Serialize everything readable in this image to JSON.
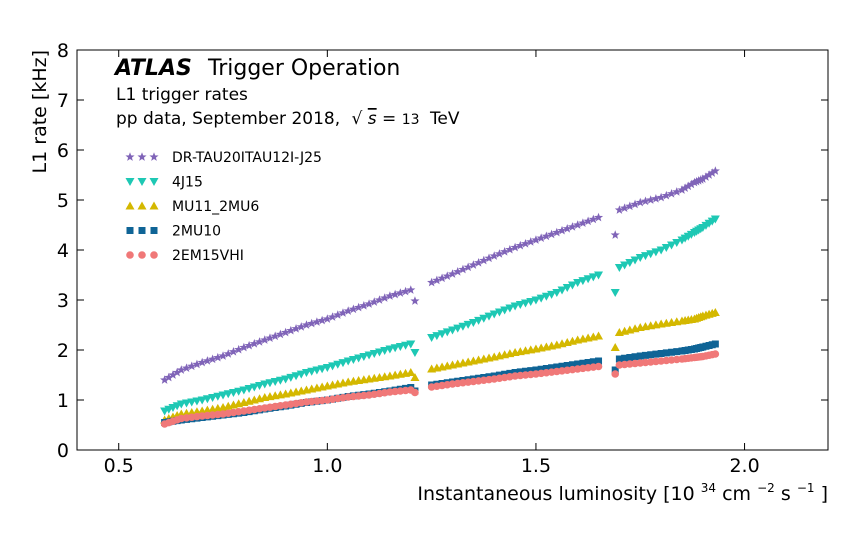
{
  "chart_data": {
    "type": "scatter",
    "title_bold": "ATLAS",
    "title_rest": "Trigger Operation",
    "subtitle_1": "L1 trigger rates",
    "subtitle_2_prefix": "pp data, September 2018,",
    "sqrt_symbol": "√",
    "sqrt_var": "s",
    "equals": "=",
    "energy_value": "13",
    "energy_unit": "TeV",
    "xlabel_prefix": "Instantaneous luminosity [10",
    "xlabel_exp1": "34",
    "xlabel_mid": "cm",
    "xlabel_exp2": "−2",
    "xlabel_s": "s",
    "xlabel_exp3": "−1",
    "xlabel_end": "]",
    "ylabel": "L1 rate [kHz]",
    "xlim": [
      0.4,
      2.2
    ],
    "ylim": [
      0,
      8
    ],
    "x_ticks": [
      0.5,
      1.0,
      1.5,
      2.0
    ],
    "x_tick_labels": [
      "0.5",
      "1.0",
      "1.5",
      "2.0"
    ],
    "y_ticks": [
      0,
      1,
      2,
      3,
      4,
      5,
      6,
      7,
      8
    ],
    "y_tick_labels": [
      "0",
      "1",
      "2",
      "3",
      "4",
      "5",
      "6",
      "7",
      "8"
    ],
    "grid": false,
    "legend_position": "upper-left",
    "series": [
      {
        "name": "DR-TAU20ITAU12I-J25",
        "marker": "star",
        "color": "#8064b8",
        "points": [
          [
            0.61,
            1.4
          ],
          [
            0.65,
            1.6
          ],
          [
            0.7,
            1.75
          ],
          [
            0.75,
            1.88
          ],
          [
            0.8,
            2.05
          ],
          [
            0.85,
            2.2
          ],
          [
            0.9,
            2.35
          ],
          [
            0.95,
            2.5
          ],
          [
            1.0,
            2.62
          ],
          [
            1.05,
            2.78
          ],
          [
            1.1,
            2.92
          ],
          [
            1.15,
            3.08
          ],
          [
            1.2,
            3.2
          ],
          [
            1.21,
            2.98
          ],
          [
            1.25,
            3.35
          ],
          [
            1.3,
            3.52
          ],
          [
            1.35,
            3.7
          ],
          [
            1.4,
            3.88
          ],
          [
            1.45,
            4.05
          ],
          [
            1.5,
            4.2
          ],
          [
            1.55,
            4.35
          ],
          [
            1.6,
            4.5
          ],
          [
            1.65,
            4.65
          ],
          [
            1.69,
            4.3
          ],
          [
            1.7,
            4.8
          ],
          [
            1.75,
            4.95
          ],
          [
            1.8,
            5.05
          ],
          [
            1.85,
            5.2
          ],
          [
            1.88,
            5.35
          ],
          [
            1.9,
            5.42
          ],
          [
            1.93,
            5.58
          ]
        ]
      },
      {
        "name": "4J15",
        "marker": "triangle-down",
        "color": "#1ec8b4",
        "points": [
          [
            0.61,
            0.78
          ],
          [
            0.65,
            0.92
          ],
          [
            0.7,
            1.0
          ],
          [
            0.75,
            1.1
          ],
          [
            0.8,
            1.2
          ],
          [
            0.85,
            1.32
          ],
          [
            0.9,
            1.42
          ],
          [
            0.95,
            1.55
          ],
          [
            1.0,
            1.65
          ],
          [
            1.05,
            1.78
          ],
          [
            1.1,
            1.9
          ],
          [
            1.15,
            2.02
          ],
          [
            1.2,
            2.12
          ],
          [
            1.21,
            1.95
          ],
          [
            1.25,
            2.25
          ],
          [
            1.3,
            2.4
          ],
          [
            1.35,
            2.55
          ],
          [
            1.4,
            2.72
          ],
          [
            1.45,
            2.88
          ],
          [
            1.5,
            3.0
          ],
          [
            1.55,
            3.15
          ],
          [
            1.6,
            3.35
          ],
          [
            1.65,
            3.5
          ],
          [
            1.69,
            3.15
          ],
          [
            1.7,
            3.65
          ],
          [
            1.75,
            3.85
          ],
          [
            1.8,
            4.0
          ],
          [
            1.85,
            4.2
          ],
          [
            1.88,
            4.35
          ],
          [
            1.9,
            4.45
          ],
          [
            1.93,
            4.62
          ]
        ]
      },
      {
        "name": "MU11_2MU6",
        "marker": "triangle-up",
        "color": "#d4b800",
        "points": [
          [
            0.61,
            0.6
          ],
          [
            0.65,
            0.72
          ],
          [
            0.7,
            0.78
          ],
          [
            0.75,
            0.85
          ],
          [
            0.8,
            0.95
          ],
          [
            0.85,
            1.05
          ],
          [
            0.9,
            1.12
          ],
          [
            0.95,
            1.2
          ],
          [
            1.0,
            1.28
          ],
          [
            1.05,
            1.36
          ],
          [
            1.1,
            1.42
          ],
          [
            1.15,
            1.48
          ],
          [
            1.2,
            1.55
          ],
          [
            1.21,
            1.45
          ],
          [
            1.25,
            1.62
          ],
          [
            1.3,
            1.7
          ],
          [
            1.35,
            1.78
          ],
          [
            1.4,
            1.86
          ],
          [
            1.45,
            1.95
          ],
          [
            1.5,
            2.02
          ],
          [
            1.55,
            2.1
          ],
          [
            1.6,
            2.2
          ],
          [
            1.65,
            2.28
          ],
          [
            1.69,
            2.05
          ],
          [
            1.7,
            2.35
          ],
          [
            1.75,
            2.45
          ],
          [
            1.8,
            2.52
          ],
          [
            1.85,
            2.58
          ],
          [
            1.88,
            2.62
          ],
          [
            1.9,
            2.68
          ],
          [
            1.93,
            2.75
          ]
        ]
      },
      {
        "name": "2MU10",
        "marker": "square",
        "color": "#0f6496",
        "points": [
          [
            0.61,
            0.55
          ],
          [
            0.65,
            0.6
          ],
          [
            0.7,
            0.65
          ],
          [
            0.75,
            0.7
          ],
          [
            0.8,
            0.75
          ],
          [
            0.85,
            0.82
          ],
          [
            0.9,
            0.88
          ],
          [
            0.95,
            0.95
          ],
          [
            1.0,
            1.0
          ],
          [
            1.05,
            1.07
          ],
          [
            1.1,
            1.12
          ],
          [
            1.15,
            1.18
          ],
          [
            1.2,
            1.25
          ],
          [
            1.21,
            1.18
          ],
          [
            1.25,
            1.3
          ],
          [
            1.3,
            1.36
          ],
          [
            1.35,
            1.42
          ],
          [
            1.4,
            1.48
          ],
          [
            1.45,
            1.55
          ],
          [
            1.5,
            1.6
          ],
          [
            1.55,
            1.66
          ],
          [
            1.6,
            1.72
          ],
          [
            1.65,
            1.78
          ],
          [
            1.69,
            1.6
          ],
          [
            1.7,
            1.82
          ],
          [
            1.75,
            1.88
          ],
          [
            1.8,
            1.93
          ],
          [
            1.85,
            1.98
          ],
          [
            1.88,
            2.02
          ],
          [
            1.9,
            2.06
          ],
          [
            1.93,
            2.12
          ]
        ]
      },
      {
        "name": "2EM15VHI",
        "marker": "circle",
        "color": "#f07878",
        "points": [
          [
            0.61,
            0.52
          ],
          [
            0.65,
            0.63
          ],
          [
            0.7,
            0.68
          ],
          [
            0.75,
            0.72
          ],
          [
            0.8,
            0.78
          ],
          [
            0.85,
            0.84
          ],
          [
            0.9,
            0.9
          ],
          [
            0.95,
            0.96
          ],
          [
            1.0,
            1.0
          ],
          [
            1.05,
            1.06
          ],
          [
            1.1,
            1.1
          ],
          [
            1.15,
            1.16
          ],
          [
            1.2,
            1.2
          ],
          [
            1.21,
            1.15
          ],
          [
            1.25,
            1.26
          ],
          [
            1.3,
            1.32
          ],
          [
            1.35,
            1.37
          ],
          [
            1.4,
            1.42
          ],
          [
            1.45,
            1.48
          ],
          [
            1.5,
            1.52
          ],
          [
            1.55,
            1.57
          ],
          [
            1.6,
            1.62
          ],
          [
            1.65,
            1.67
          ],
          [
            1.69,
            1.52
          ],
          [
            1.7,
            1.7
          ],
          [
            1.75,
            1.74
          ],
          [
            1.8,
            1.78
          ],
          [
            1.85,
            1.82
          ],
          [
            1.88,
            1.85
          ],
          [
            1.9,
            1.87
          ],
          [
            1.93,
            1.92
          ]
        ]
      }
    ]
  }
}
